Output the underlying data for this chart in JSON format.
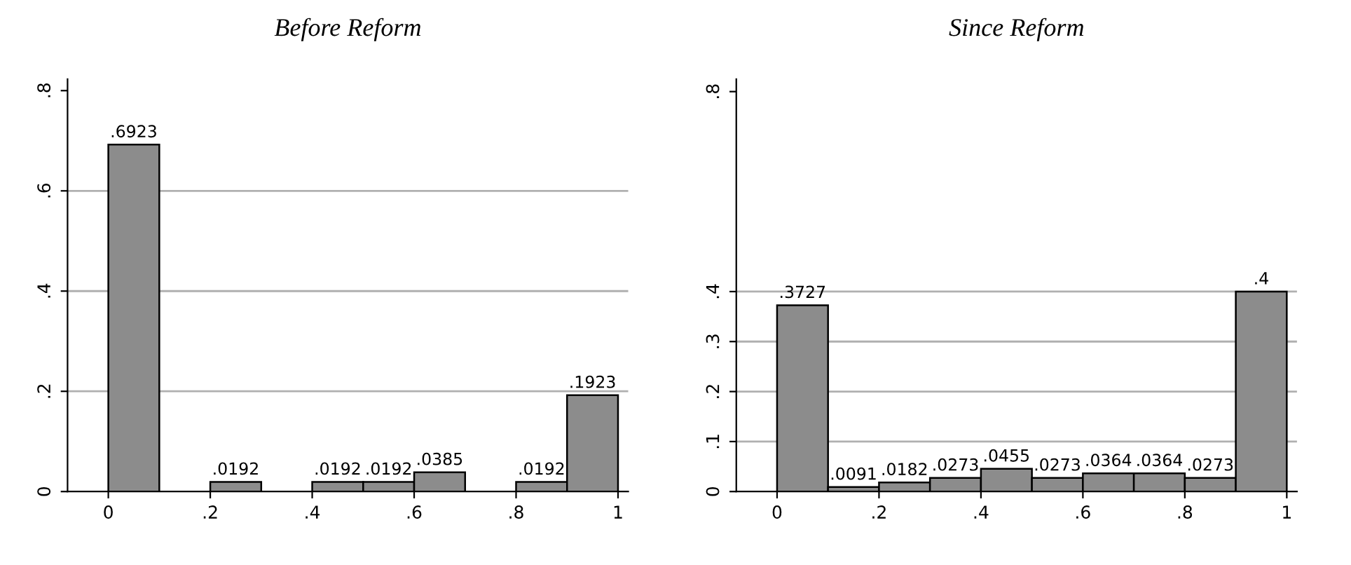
{
  "chart_data": [
    {
      "type": "histogram",
      "title": "Before Reform",
      "bins": [
        0,
        0.1,
        0.2,
        0.3,
        0.4,
        0.5,
        0.6,
        0.7,
        0.8,
        0.9,
        1.0
      ],
      "values": [
        0.6923,
        0,
        0.0192,
        0,
        0.0192,
        0.0192,
        0.0385,
        0,
        0.0192,
        0.1923
      ],
      "value_labels": [
        ".6923",
        null,
        ".0192",
        null,
        ".0192",
        ".0192",
        ".0385",
        null,
        ".0192",
        ".1923"
      ],
      "color": "#8c8c8c",
      "xlim": [
        -0.08,
        1.02
      ],
      "ylim": [
        0,
        0.823
      ],
      "xticks": [
        0,
        {
          "value": 0.2,
          "label": ".2"
        },
        {
          "value": 0.4,
          "label": ".4"
        },
        {
          "value": 0.6,
          "label": ".6"
        },
        {
          "value": 0.8,
          "label": ".8"
        },
        1
      ],
      "yticks": [
        0,
        {
          "value": 0.2,
          "label": ".2"
        },
        {
          "value": 0.4,
          "label": ".4"
        },
        {
          "value": 0.6,
          "label": ".6"
        },
        {
          "value": 0.8,
          "label": ".8"
        }
      ],
      "grid": "y"
    },
    {
      "type": "histogram",
      "title": "Since Reform",
      "bins": [
        0,
        0.1,
        0.2,
        0.3,
        0.4,
        0.5,
        0.6,
        0.7,
        0.8,
        0.9,
        1.0
      ],
      "values": [
        0.3727,
        0.0091,
        0.0182,
        0.0273,
        0.0455,
        0.0273,
        0.0364,
        0.0364,
        0.0273,
        0.4
      ],
      "value_labels": [
        ".3727",
        ".0091",
        ".0182",
        ".0273",
        ".0455",
        ".0273",
        ".0364",
        ".0364",
        ".0273",
        ".4"
      ],
      "color": "#8c8c8c",
      "xlim": [
        -0.08,
        1.02
      ],
      "ylim": [
        0,
        0.825
      ],
      "xticks": [
        0,
        {
          "value": 0.2,
          "label": ".2"
        },
        {
          "value": 0.4,
          "label": ".4"
        },
        {
          "value": 0.6,
          "label": ".6"
        },
        {
          "value": 0.8,
          "label": ".8"
        },
        1
      ],
      "yticks": [
        0,
        {
          "value": 0.1,
          "label": ".1"
        },
        {
          "value": 0.2,
          "label": ".2"
        },
        {
          "value": 0.3,
          "label": ".3"
        },
        {
          "value": 0.4,
          "label": ".4"
        },
        {
          "value": 0.8,
          "label": ".8"
        }
      ],
      "grid": "y"
    }
  ]
}
